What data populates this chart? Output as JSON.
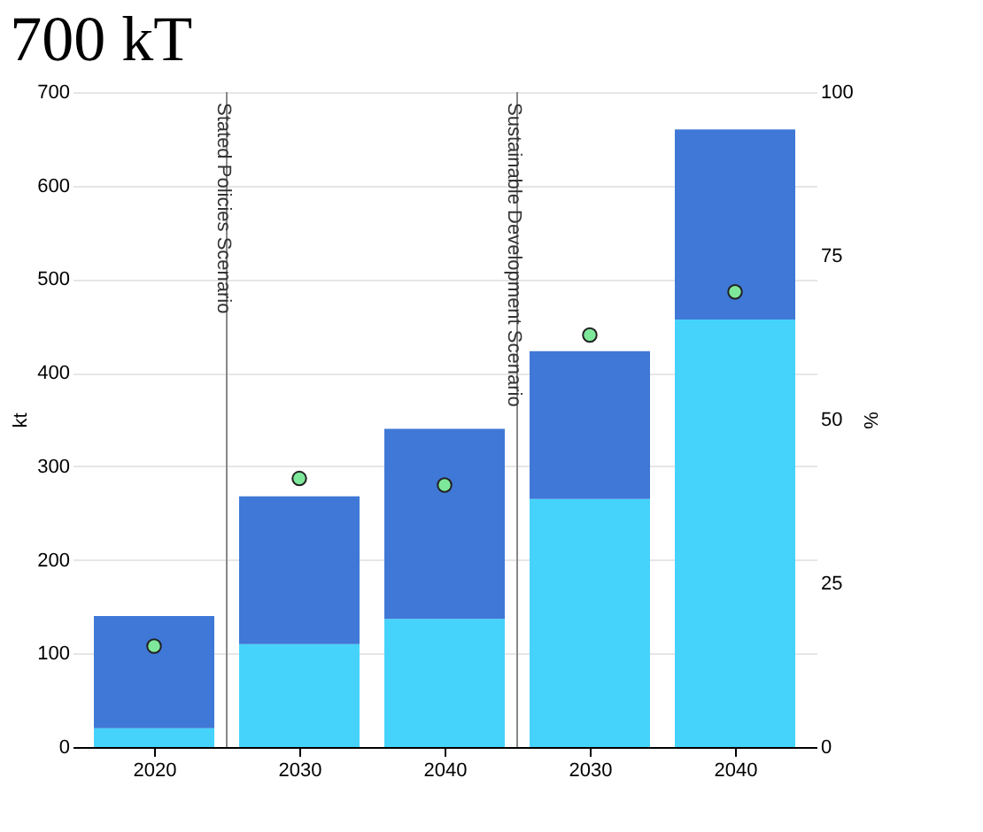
{
  "chart_data": {
    "type": "bar",
    "title": "700 kT",
    "categories": [
      "2020",
      "2030",
      "2040",
      "2030",
      "2040"
    ],
    "stacked": true,
    "ylabel": "kt",
    "y2label": "%",
    "ylim": [
      0,
      700
    ],
    "yticks": [
      0,
      100,
      200,
      300,
      400,
      500,
      600,
      700
    ],
    "y2lim": [
      0,
      100
    ],
    "y2ticks": [
      0,
      25,
      50,
      75,
      100
    ],
    "grid": "y",
    "marker": "circle",
    "series": [
      {
        "color": "#45d3fb",
        "values": [
          20,
          110,
          137,
          265,
          457
        ]
      },
      {
        "color": "#3f78d6",
        "values": [
          120,
          158,
          203,
          158,
          203
        ]
      },
      {
        "type": "scatter",
        "axis": "y2",
        "color": "#7ee89a",
        "values": [
          15.4,
          41,
          40,
          62.9,
          69.5
        ]
      }
    ],
    "annotations": [
      "Stated Policies Scenario",
      "Sustainable Development Scenario"
    ]
  }
}
